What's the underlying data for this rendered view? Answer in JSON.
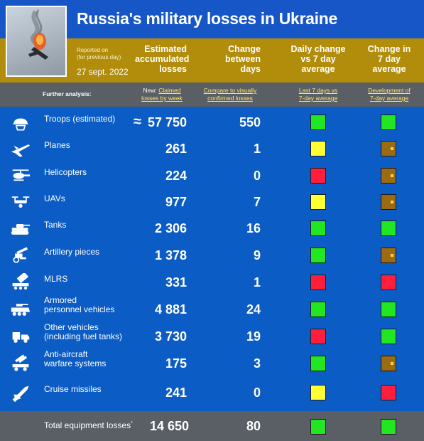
{
  "title": "Russia's military losses in Ukraine",
  "reported": {
    "line1": "Reported on",
    "line2": "(for previous day)",
    "date": "27 sept. 2022"
  },
  "columns": {
    "accumulated": "Estimated\naccumulated\nlosses",
    "change": "Change\nbetween\ndays",
    "daily_vs_avg": "Daily change\nvs 7 day\naverage",
    "change_avg": "Change in\n7 day\naverage"
  },
  "analysis": {
    "label": "Further analysis:",
    "new_prefix": "New:",
    "claimed_line1": "Claimed",
    "claimed_line2": "losses by week",
    "compare_line1": "Compare to visually",
    "compare_line2": "confirmed losses",
    "last7_line1": "Last 7 days vs",
    "last7_line2": "7-day average",
    "dev_line1": "Development of",
    "dev_line2": "7-day average"
  },
  "approx_symbol": "≈",
  "status_colors": {
    "green": "#22e622",
    "yellow": "#ffff33",
    "red": "#ff1f3d",
    "brown": "#9c6a10"
  },
  "rows": [
    {
      "icon": "soldier-helmet-icon",
      "label_line1": "Troops (estimated)",
      "label_line2": "",
      "value": "57 750",
      "change": "550",
      "daily": "green",
      "trend": "green"
    },
    {
      "icon": "fighter-jet-icon",
      "label_line1": "Planes",
      "label_line2": "",
      "value": "261",
      "change": "1",
      "daily": "yellow",
      "trend": "brown"
    },
    {
      "icon": "helicopter-icon",
      "label_line1": "Helicopters",
      "label_line2": "",
      "value": "224",
      "change": "0",
      "daily": "red",
      "trend": "brown"
    },
    {
      "icon": "drone-icon",
      "label_line1": "UAVs",
      "label_line2": "",
      "value": "977",
      "change": "7",
      "daily": "yellow",
      "trend": "brown"
    },
    {
      "icon": "tank-icon",
      "label_line1": "Tanks",
      "label_line2": "",
      "value": "2 306",
      "change": "16",
      "daily": "green",
      "trend": "green"
    },
    {
      "icon": "artillery-icon",
      "label_line1": "Artillery pieces",
      "label_line2": "",
      "value": "1 378",
      "change": "9",
      "daily": "green",
      "trend": "brown"
    },
    {
      "icon": "rocket-launcher-icon",
      "label_line1": "MLRS",
      "label_line2": "",
      "value": "331",
      "change": "1",
      "daily": "red",
      "trend": "red"
    },
    {
      "icon": "armored-vehicle-icon",
      "label_line1": "Armored",
      "label_line2": "personnel vehicles",
      "value": "4 881",
      "change": "24",
      "daily": "green",
      "trend": "green"
    },
    {
      "icon": "truck-icon",
      "label_line1": "Other vehicles",
      "label_line2": "(including fuel tanks)",
      "value": "3 730",
      "change": "19",
      "daily": "red",
      "trend": "green"
    },
    {
      "icon": "anti-aircraft-icon",
      "label_line1": "Anti-aircraft",
      "label_line2": "warfare systems",
      "value": "175",
      "change": "3",
      "daily": "green",
      "trend": "brown"
    },
    {
      "icon": "cruise-missile-icon",
      "label_line1": "Cruise missiles",
      "label_line2": "",
      "value": "241",
      "change": "0",
      "daily": "yellow",
      "trend": "red"
    }
  ],
  "total": {
    "label": "Total equipment losses",
    "marker": "*",
    "value": "14 650",
    "change": "80",
    "daily": "green",
    "trend": "green"
  }
}
